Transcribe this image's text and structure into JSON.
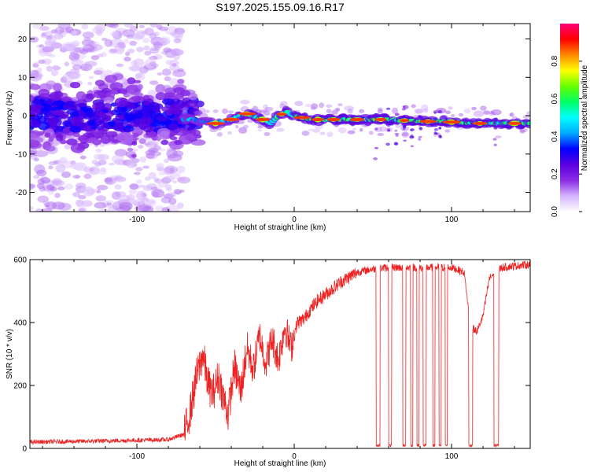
{
  "chart_data": [
    {
      "type": "heatmap",
      "title": "S197.2025.155.09.16.R17",
      "xlabel": "Height of straight line (km)",
      "ylabel": "Frequency (Hz)",
      "xlim": [
        -168,
        150
      ],
      "ylim": [
        -25,
        24
      ],
      "xticks": [
        -100,
        0,
        100
      ],
      "yticks": [
        -20,
        -10,
        0,
        10,
        20
      ],
      "colorbar": {
        "label": "Normalized spectral amplitude",
        "range": [
          0,
          1
        ],
        "ticks": [
          "0.0",
          "0.2",
          "0.4",
          "0.6",
          "0.8"
        ],
        "colormap": [
          "#ffffff",
          "#d6b4ff",
          "#8a2be2",
          "#5a00e0",
          "#0000ff",
          "#00aaff",
          "#00ffff",
          "#00ff66",
          "#66ff00",
          "#ffff00",
          "#ff8800",
          "#ff0000",
          "#ff0077"
        ]
      },
      "ridge": {
        "x": [
          -65,
          -50,
          -40,
          -30,
          -20,
          -15,
          -10,
          -5,
          0,
          10,
          20,
          40,
          60,
          80,
          95,
          110,
          130,
          150
        ],
        "y": [
          -1,
          -2,
          -1,
          0.5,
          -1,
          -2,
          0,
          1,
          0,
          -1,
          -1,
          -1,
          -1,
          -1.5,
          -1.5,
          -2,
          -2,
          -2
        ]
      }
    },
    {
      "type": "line",
      "xlabel": "Height of straight line (km)",
      "ylabel": "SNR (10 * v/v)",
      "xlim": [
        -168,
        150
      ],
      "ylim": [
        0,
        600
      ],
      "xticks": [
        -100,
        0,
        100
      ],
      "yticks": [
        0,
        200,
        400,
        600
      ],
      "color": "#ee2222",
      "series": {
        "x": [
          -168,
          -140,
          -110,
          -80,
          -70,
          -66,
          -62,
          -58,
          -55,
          -52,
          -48,
          -45,
          -42,
          -38,
          -34,
          -30,
          -26,
          -22,
          -18,
          -14,
          -10,
          -6,
          -2,
          2,
          6,
          10,
          15,
          20,
          25,
          30,
          40,
          50,
          60,
          70,
          80,
          90,
          100,
          108,
          112,
          116,
          120,
          124,
          128,
          132,
          140,
          150
        ],
        "y": [
          20,
          22,
          25,
          28,
          45,
          120,
          230,
          300,
          210,
          170,
          230,
          160,
          110,
          260,
          180,
          320,
          250,
          360,
          270,
          350,
          280,
          390,
          320,
          400,
          410,
          440,
          470,
          490,
          510,
          530,
          560,
          570,
          575,
          575,
          575,
          575,
          575,
          560,
          390,
          370,
          420,
          540,
          560,
          575,
          580,
          585
        ]
      },
      "dropouts": [
        {
          "x0": 52,
          "x1": 54.5,
          "y": 5
        },
        {
          "x0": 60,
          "x1": 62,
          "y": 5
        },
        {
          "x0": 69,
          "x1": 71,
          "y": 5
        },
        {
          "x0": 74,
          "x1": 75.5,
          "y": 5
        },
        {
          "x0": 78,
          "x1": 79.5,
          "y": 5
        },
        {
          "x0": 82,
          "x1": 84,
          "y": 5
        },
        {
          "x0": 88,
          "x1": 89.5,
          "y": 5
        },
        {
          "x0": 92,
          "x1": 93.5,
          "y": 5
        },
        {
          "x0": 96,
          "x1": 97.5,
          "y": 5
        },
        {
          "x0": 111,
          "x1": 113.5,
          "y": 5
        },
        {
          "x0": 127,
          "x1": 130,
          "y": 5
        }
      ]
    }
  ]
}
